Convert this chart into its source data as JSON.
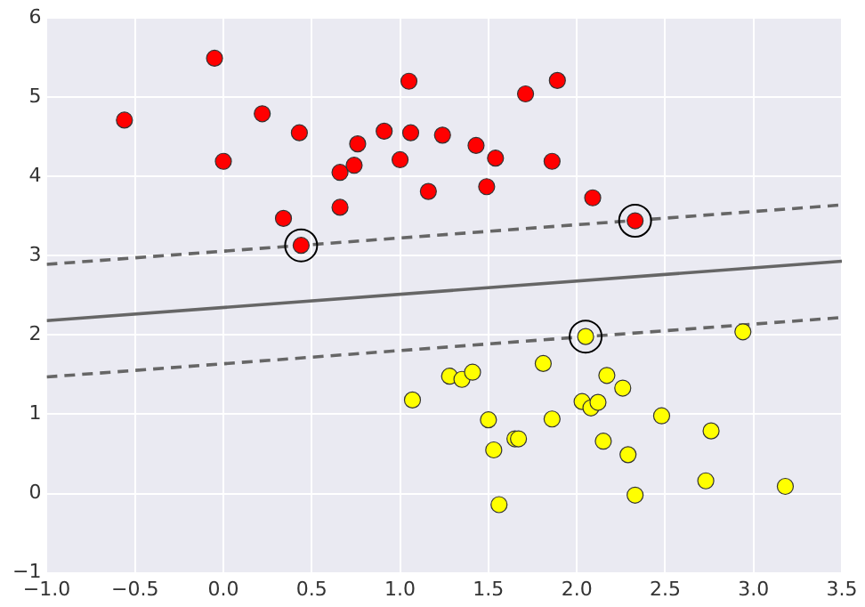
{
  "chart_data": {
    "type": "scatter",
    "grid": true,
    "marker": "circle",
    "legend": false,
    "xlim": [
      -1,
      3.5
    ],
    "ylim": [
      -1,
      6
    ],
    "xticks": [
      {
        "value": -1,
        "label": "−1.0"
      },
      {
        "value": -0.5,
        "label": "−0.5"
      },
      {
        "value": 0,
        "label": "0.0"
      },
      {
        "value": 0.5,
        "label": "0.5"
      },
      {
        "value": 1,
        "label": "1.0"
      },
      {
        "value": 1.5,
        "label": "1.5"
      },
      {
        "value": 2,
        "label": "2.0"
      },
      {
        "value": 2.5,
        "label": "2.5"
      },
      {
        "value": 3,
        "label": "3.0"
      },
      {
        "value": 3.5,
        "label": "3.5"
      }
    ],
    "yticks": [
      {
        "value": -1,
        "label": "−1"
      },
      0,
      1,
      2,
      3,
      4,
      5,
      6
    ],
    "series": [
      {
        "type": "line",
        "marker": "none",
        "color": "#666666",
        "line_style": "solid",
        "x": [
          -1,
          3.5
        ],
        "values": [
          2.18,
          2.93
        ]
      },
      {
        "type": "line",
        "marker": "none",
        "color": "#666666",
        "line_style": "dashed",
        "x": [
          -1,
          3.5
        ],
        "values": [
          2.89,
          3.64
        ]
      },
      {
        "type": "line",
        "marker": "none",
        "color": "#666666",
        "line_style": "dashed",
        "x": [
          -1,
          3.5
        ],
        "values": [
          1.47,
          2.22
        ]
      },
      {
        "type": "scatter",
        "color": "#ff0000",
        "x": [
          -0.56,
          -0.05,
          0.0,
          0.22,
          0.43,
          0.34,
          0.44,
          0.66,
          0.66,
          0.74,
          0.76,
          0.91,
          1.0,
          1.05,
          1.06,
          1.16,
          1.24,
          1.43,
          1.54,
          1.49,
          1.71,
          1.89,
          1.86,
          2.09,
          2.33
        ],
        "values": [
          4.71,
          5.49,
          4.19,
          4.79,
          4.55,
          3.47,
          3.13,
          4.05,
          3.61,
          4.14,
          4.41,
          4.57,
          4.21,
          5.2,
          4.55,
          3.81,
          4.52,
          4.39,
          4.23,
          3.87,
          5.04,
          5.21,
          4.19,
          3.73,
          3.44
        ]
      },
      {
        "type": "scatter",
        "color": "#ffff00",
        "x": [
          1.07,
          1.28,
          1.35,
          1.41,
          1.5,
          1.53,
          1.56,
          1.65,
          1.67,
          1.81,
          1.86,
          2.05,
          2.03,
          2.08,
          2.12,
          2.17,
          2.15,
          2.26,
          2.29,
          2.33,
          2.48,
          2.76,
          2.73,
          2.94,
          3.18
        ],
        "values": [
          1.18,
          1.48,
          1.44,
          1.53,
          0.93,
          0.55,
          -0.14,
          0.69,
          0.69,
          1.64,
          0.94,
          1.98,
          1.16,
          1.08,
          1.15,
          1.49,
          0.66,
          1.33,
          0.49,
          -0.02,
          0.98,
          0.79,
          0.16,
          2.04,
          0.09
        ]
      },
      {
        "type": "scatter",
        "marker": "circle",
        "color": "#000000",
        "x": [
          0.44,
          2.33,
          2.05
        ],
        "values": [
          3.13,
          3.44,
          1.98
        ]
      }
    ]
  }
}
